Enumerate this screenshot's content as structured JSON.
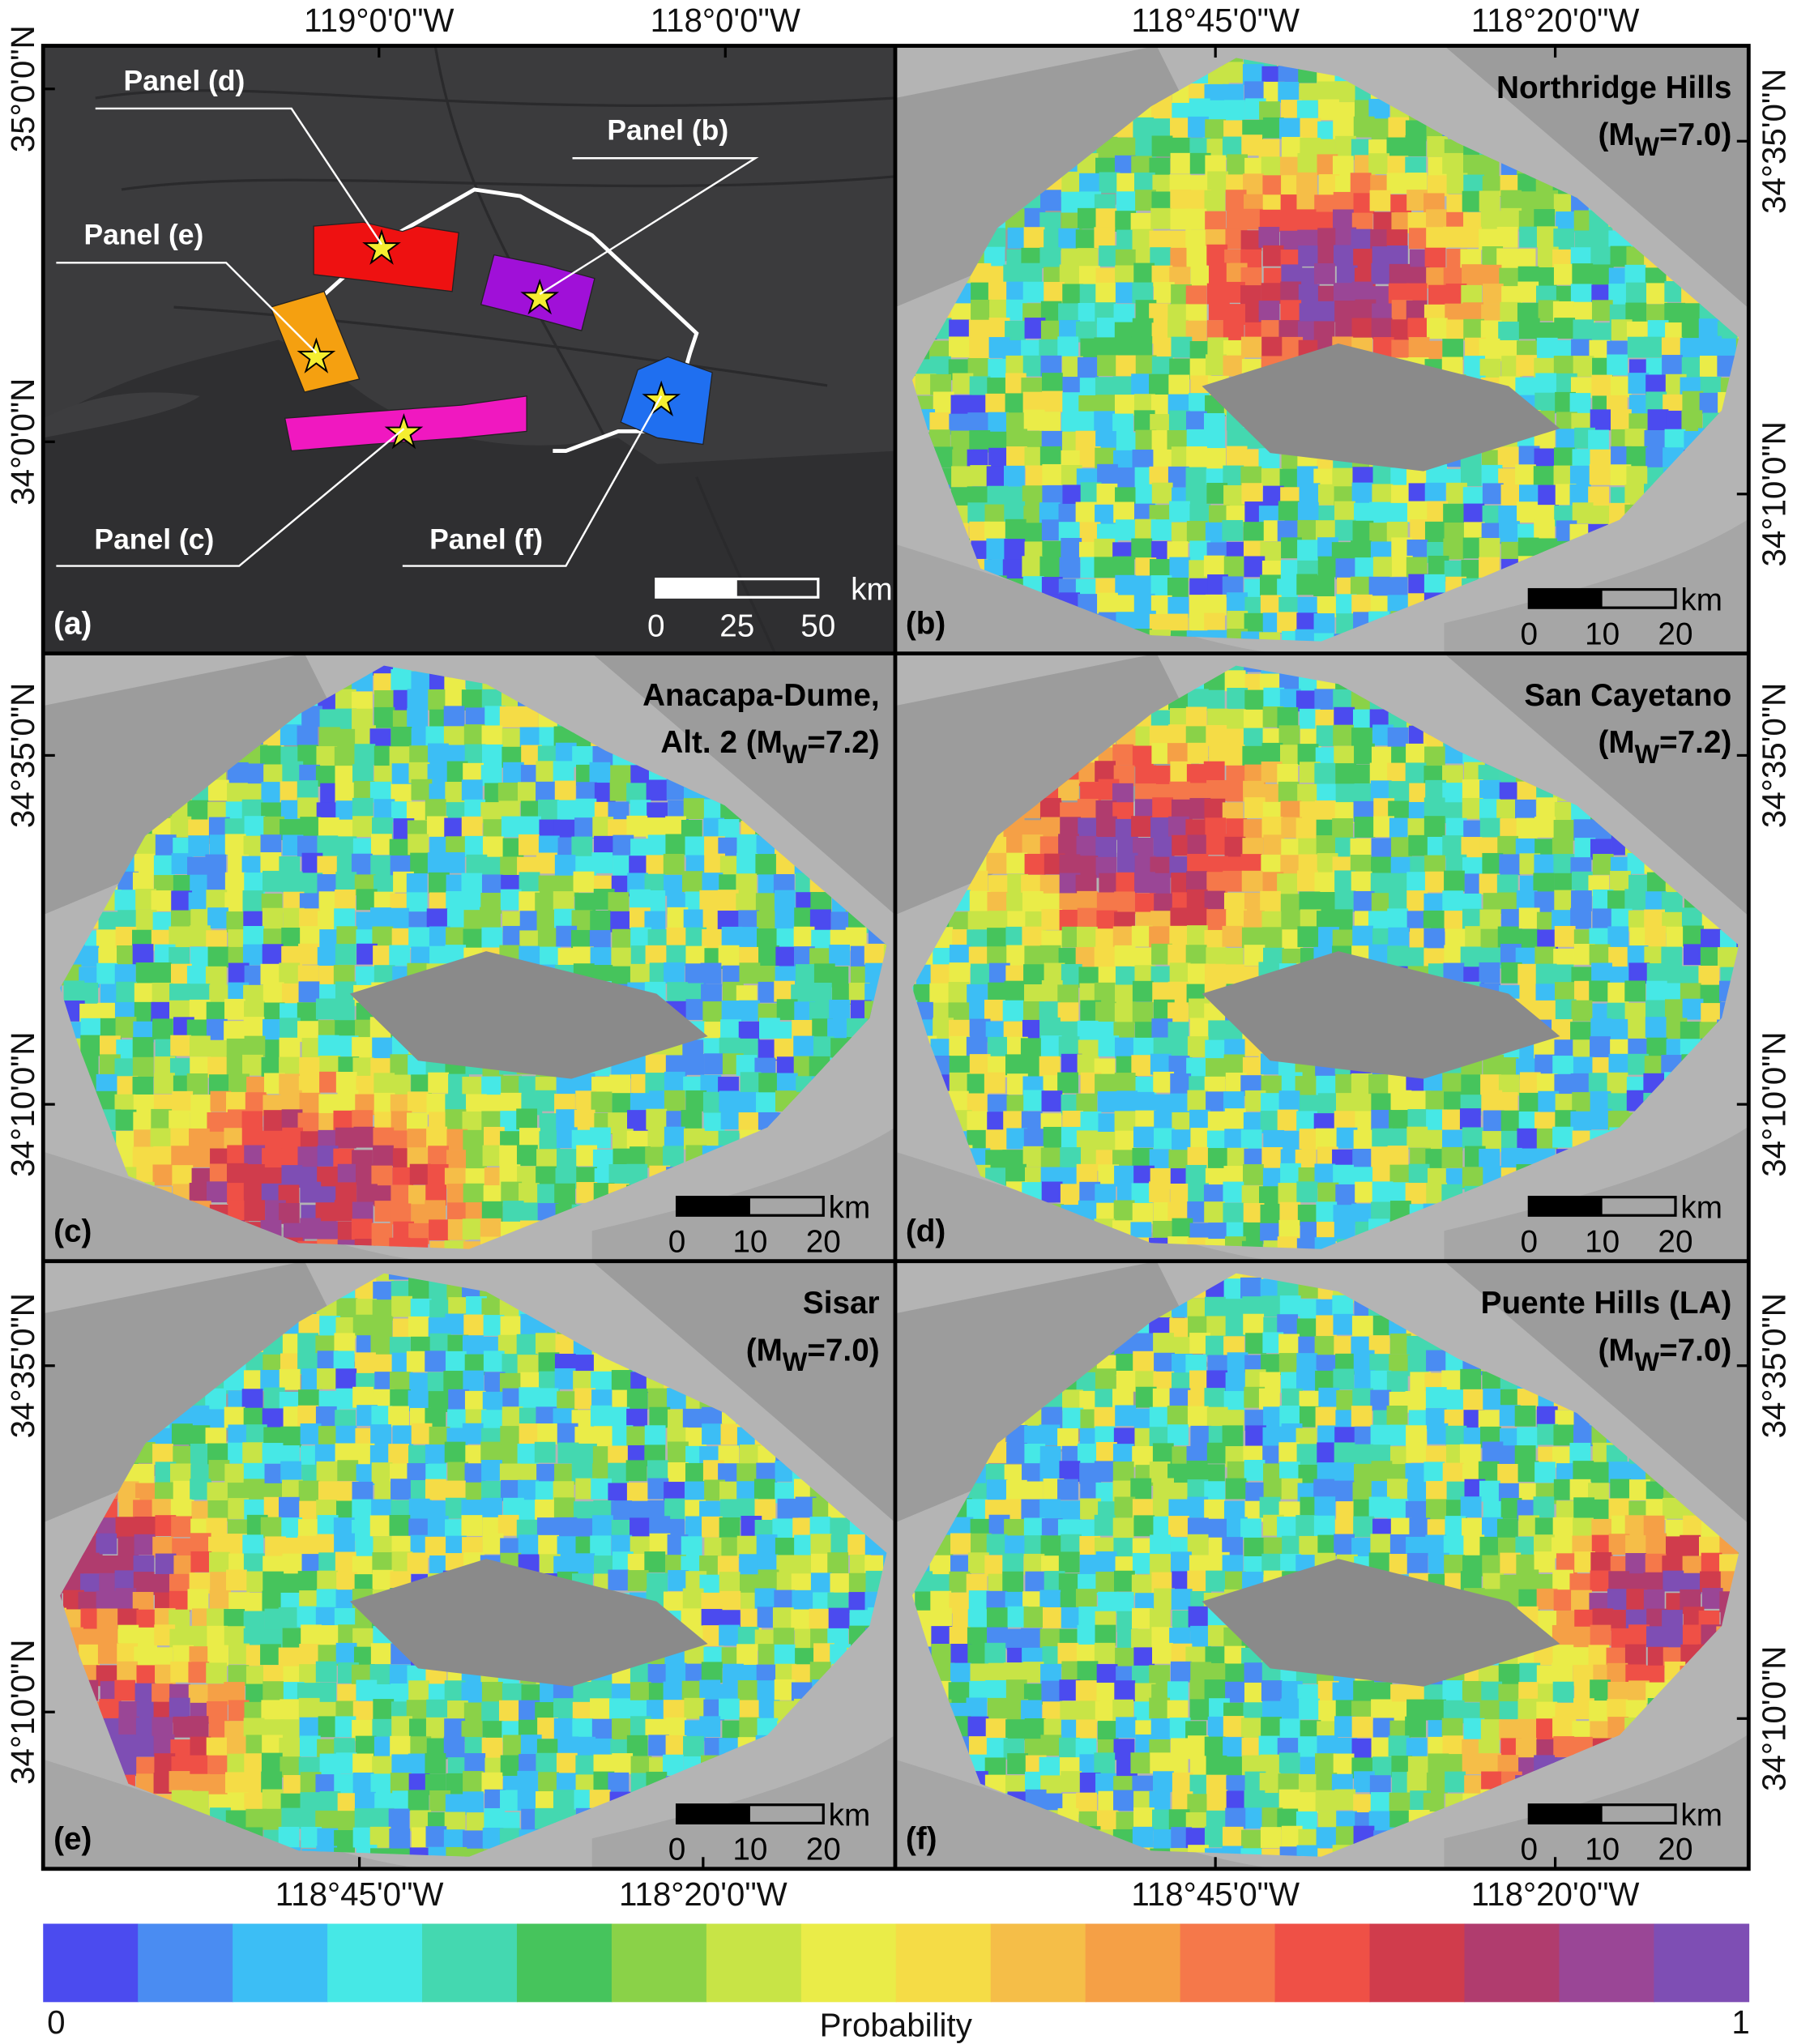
{
  "axes": {
    "top": [
      "119°0'0\"W",
      "118°0'0\"W",
      "118°45'0\"W",
      "118°20'0\"W"
    ],
    "bottom": [
      "118°45'0\"W",
      "118°20'0\"W",
      "118°45'0\"W",
      "118°20'0\"W"
    ],
    "left": [
      "35°0'0\"N",
      "34°0'0\"N",
      "34°35'0\"N",
      "34°10'0\"N",
      "34°35'0\"N",
      "34°10'0\"N"
    ],
    "right": [
      "34°35'0\"N",
      "34°10'0\"N",
      "34°35'0\"N",
      "34°10'0\"N",
      "34°35'0\"N",
      "34°10'0\"N"
    ]
  },
  "overview": {
    "label": "(a)",
    "callouts": [
      "Panel (d)",
      "Panel (b)",
      "Panel (e)",
      "Panel (c)",
      "Panel (f)"
    ],
    "scale": {
      "ticks": [
        0,
        25,
        50
      ],
      "unit": "km"
    }
  },
  "map_panels": [
    {
      "label": "(b)",
      "title": "Northridge Hills",
      "magnitude": [
        "(M",
        "W",
        "=7.0)"
      ]
    },
    {
      "label": "(c)",
      "title": "Anacapa-Dume,",
      "magnitude": [
        "Alt. 2 (M",
        "W",
        "=7.2)"
      ]
    },
    {
      "label": "(d)",
      "title": "San Cayetano",
      "magnitude": [
        "(M",
        "W",
        "=7.2)"
      ]
    },
    {
      "label": "(e)",
      "title": "Sisar",
      "magnitude": [
        "(M",
        "W",
        "=7.0)"
      ]
    },
    {
      "label": "(f)",
      "title": "Puente Hills (LA)",
      "magnitude": [
        "(M",
        "W",
        "=7.0)"
      ]
    }
  ],
  "map_scale": {
    "ticks": [
      0,
      10,
      20
    ],
    "unit": "km"
  },
  "colorbar": {
    "label": "Probability",
    "range": [
      0,
      1
    ],
    "ticks": [
      0,
      1
    ],
    "colors": [
      "#4b4bef",
      "#4a8cf2",
      "#3cbef5",
      "#46e8e6",
      "#44d8b0",
      "#46c45c",
      "#8ad248",
      "#c8e446",
      "#eaec48",
      "#f5dc46",
      "#f5be48",
      "#f5a046",
      "#f5784a",
      "#ef5046",
      "#d03c4c",
      "#b03c6e",
      "#9a4696",
      "#7e4eb4"
    ]
  }
}
